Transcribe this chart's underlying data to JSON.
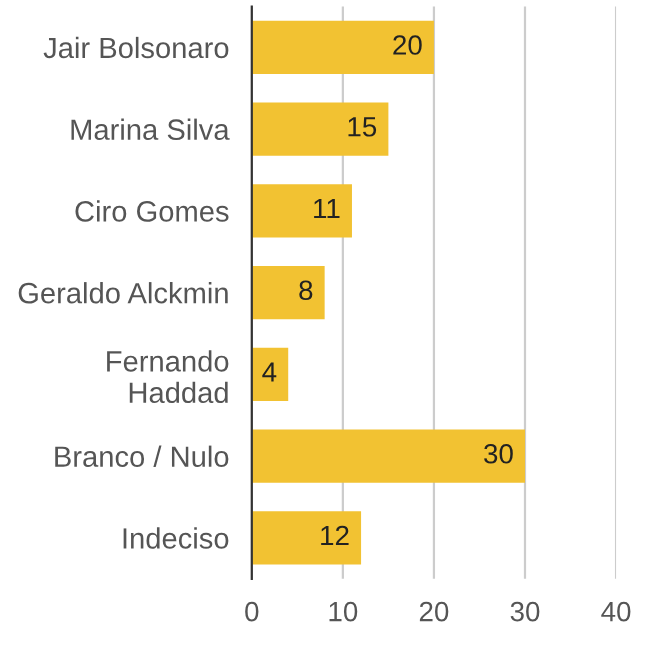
{
  "chart_data": {
    "type": "bar",
    "orientation": "horizontal",
    "categories": [
      "Jair Bolsonaro",
      "Marina Silva",
      "Ciro Gomes",
      "Geraldo Alckmin",
      "Fernando\nHaddad",
      "Branco / Nulo",
      "Indeciso"
    ],
    "values": [
      20,
      15,
      11,
      8,
      4,
      30,
      12
    ],
    "color": "#f2c232",
    "xlim": [
      0,
      40
    ],
    "xticks": [
      0,
      10,
      20,
      30,
      40
    ],
    "grid": "x",
    "data_labels": true
  }
}
